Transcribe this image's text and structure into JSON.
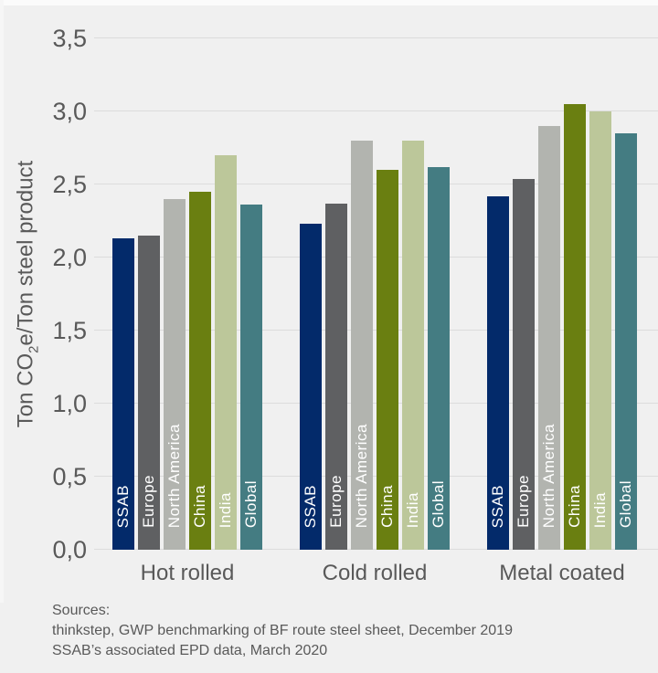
{
  "chart": {
    "background": "#f0f0f0",
    "grid_color": "#dcdcdc",
    "text_color": "#595959",
    "bar_label_color": "#ffffff"
  },
  "chart_data": {
    "type": "bar",
    "title": "",
    "xlabel": "",
    "ylabel": "Ton CO₂e/Ton steel product",
    "ylabel_parts": {
      "pre": "Ton CO",
      "sub": "2",
      "post": "e/Ton steel product"
    },
    "categories": [
      "Hot rolled",
      "Cold rolled",
      "Metal coated"
    ],
    "series": [
      {
        "name": "SSAB",
        "color": "#032a6a",
        "values": [
          2.13,
          2.23,
          2.42
        ]
      },
      {
        "name": "Europe",
        "color": "#5f6062",
        "values": [
          2.15,
          2.37,
          2.54
        ]
      },
      {
        "name": "North America",
        "color": "#b2b4af",
        "values": [
          2.4,
          2.8,
          2.9
        ]
      },
      {
        "name": "China",
        "color": "#6a7f11",
        "values": [
          2.45,
          2.6,
          3.05
        ]
      },
      {
        "name": "India",
        "color": "#bcc79a",
        "values": [
          2.7,
          2.8,
          3.0
        ]
      },
      {
        "name": "Global",
        "color": "#447c82",
        "values": [
          2.36,
          2.62,
          2.85
        ]
      }
    ],
    "ylim": [
      0,
      3.5
    ],
    "ytick_step": 0.5,
    "ytick_labels": [
      "0,0",
      "0,5",
      "1,0",
      "1,5",
      "2,0",
      "2,5",
      "3,0",
      "3,5"
    ],
    "grid": true,
    "legend_position": "none",
    "bar_labels_inside_vertical": true
  },
  "footer": {
    "sources_label": "Sources:",
    "lines": [
      "thinkstep, GWP benchmarking of BF route steel sheet, December 2019",
      "SSAB’s associated EPD data, March 2020"
    ]
  }
}
